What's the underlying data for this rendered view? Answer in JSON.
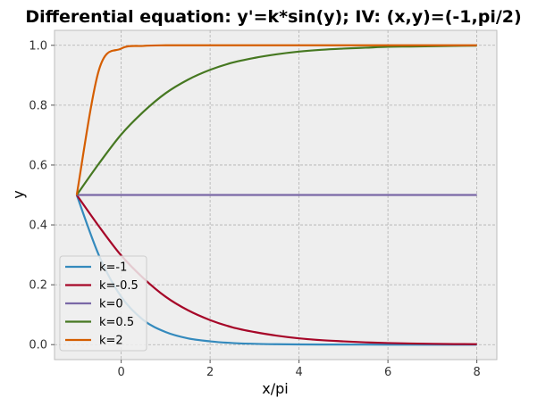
{
  "chart_data": {
    "type": "line",
    "title": "Differential equation: y'=k*sin(y); IV: (x,y)=(-1,pi/2)",
    "xlabel": "x/pi",
    "ylabel": "y",
    "xlim": [
      -1.5,
      8.45
    ],
    "ylim": [
      -0.05,
      1.05
    ],
    "xticks": [
      0,
      2,
      4,
      6,
      8
    ],
    "yticks": [
      0.0,
      0.2,
      0.4,
      0.6,
      0.8,
      1.0
    ],
    "xtick_labels": [
      "0",
      "2",
      "4",
      "6",
      "8"
    ],
    "ytick_labels": [
      "0.0",
      "0.2",
      "0.4",
      "0.6",
      "0.8",
      "1.0"
    ],
    "grid": true,
    "legend_position": "lower-left",
    "x": [
      -1,
      -0.5,
      0,
      0.5,
      1,
      1.5,
      2,
      2.5,
      3,
      3.5,
      4,
      4.5,
      5,
      5.5,
      6,
      6.5,
      7,
      7.5,
      8
    ],
    "series": [
      {
        "name": "k=-1",
        "color": "#348ABD",
        "values": [
          0.5,
          0.298,
          0.16,
          0.082,
          0.042,
          0.021,
          0.011,
          0.0054,
          0.0027,
          0.0014,
          0.0007,
          0.0004,
          0.0002,
          0.0001,
          0.0,
          0.0,
          0.0,
          0.0,
          0.0
        ]
      },
      {
        "name": "k=-0.5",
        "color": "#A60628",
        "values": [
          0.5,
          0.395,
          0.298,
          0.222,
          0.16,
          0.115,
          0.082,
          0.058,
          0.042,
          0.03,
          0.021,
          0.015,
          0.011,
          0.0076,
          0.0054,
          0.0038,
          0.0027,
          0.0019,
          0.0014
        ]
      },
      {
        "name": "k=0",
        "color": "#7A68A6",
        "values": [
          0.5,
          0.5,
          0.5,
          0.5,
          0.5,
          0.5,
          0.5,
          0.5,
          0.5,
          0.5,
          0.5,
          0.5,
          0.5,
          0.5,
          0.5,
          0.5,
          0.5,
          0.5,
          0.5
        ]
      },
      {
        "name": "k=0.5",
        "color": "#467821",
        "values": [
          0.5,
          0.605,
          0.702,
          0.778,
          0.84,
          0.885,
          0.918,
          0.942,
          0.958,
          0.97,
          0.979,
          0.985,
          0.989,
          0.992,
          0.995,
          0.996,
          0.997,
          0.998,
          0.999
        ]
      },
      {
        "name": "k=2",
        "color": "#D55E00",
        "values": [
          0.5,
          0.918,
          0.989,
          0.998,
          1.0,
          1.0,
          1.0,
          1.0,
          1.0,
          1.0,
          1.0,
          1.0,
          1.0,
          1.0,
          1.0,
          1.0,
          1.0,
          1.0,
          1.0
        ]
      }
    ]
  }
}
